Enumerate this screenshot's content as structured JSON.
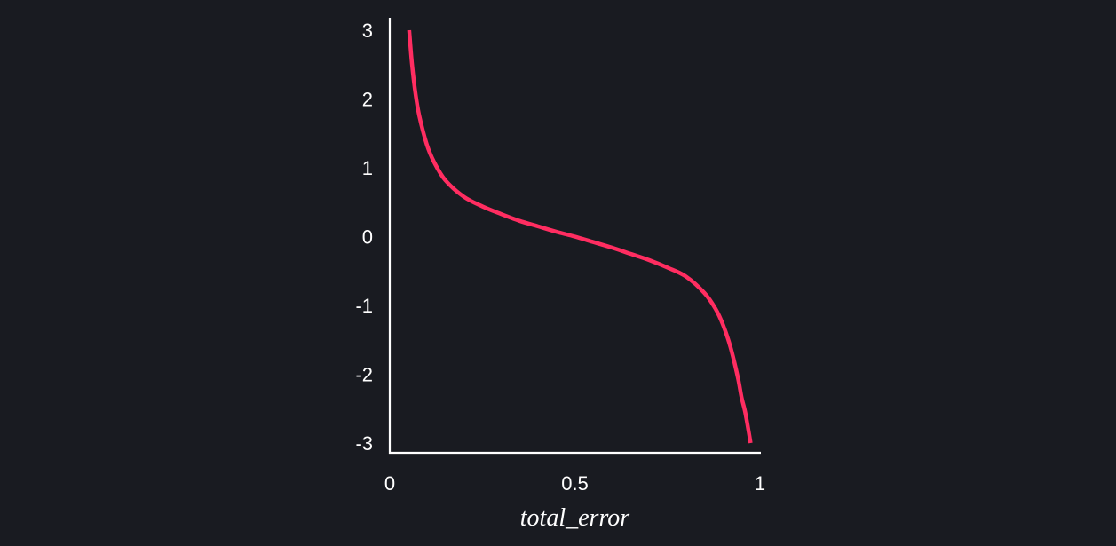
{
  "chart_data": {
    "type": "line",
    "xlabel": "total_error",
    "ylabel": "",
    "xlim": [
      0,
      1
    ],
    "ylim": [
      -3,
      3
    ],
    "x_ticks": [
      "0",
      "0.5",
      "1"
    ],
    "y_ticks": [
      "3",
      "2",
      "1",
      "0",
      "-1",
      "-2",
      "-3"
    ],
    "grid": false,
    "legend": "none",
    "series": [
      {
        "color": "#ff2d61",
        "x": [
          0.0525,
          0.06,
          0.07,
          0.08,
          0.1,
          0.12,
          0.15,
          0.2,
          0.25,
          0.3,
          0.35,
          0.4,
          0.45,
          0.5,
          0.55,
          0.6,
          0.65,
          0.7,
          0.75,
          0.8,
          0.85,
          0.88,
          0.9,
          0.92,
          0.94,
          0.95,
          0.96,
          0.97,
          0.9746
        ],
        "y": [
          3.0,
          2.51,
          2.06,
          1.75,
          1.34,
          1.08,
          0.82,
          0.58,
          0.44,
          0.33,
          0.23,
          0.15,
          0.07,
          0.0,
          -0.08,
          -0.16,
          -0.25,
          -0.34,
          -0.45,
          -0.58,
          -0.82,
          -1.05,
          -1.28,
          -1.6,
          -2.04,
          -2.33,
          -2.55,
          -2.85,
          -3.0
        ]
      }
    ],
    "axis_color": "#ffffff",
    "background": "#191b21"
  }
}
